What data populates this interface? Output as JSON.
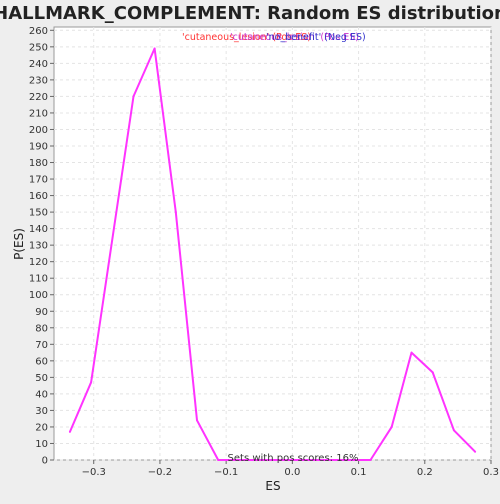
{
  "chart_data": {
    "type": "line",
    "title": "HALLMARK_COMPLEMENT: Random ES distribution",
    "xlabel": "ES",
    "ylabel": "P(ES)",
    "xlim": [
      -0.36,
      0.3
    ],
    "ylim": [
      0,
      262
    ],
    "x_ticks": [
      -0.3,
      -0.2,
      -0.1,
      0.0,
      0.1,
      0.2,
      0.3
    ],
    "x_tick_labels": [
      "−0.3",
      "−0.2",
      "−0.1",
      "0.0",
      "0.1",
      "0.2",
      "0.3"
    ],
    "y_ticks": [
      0,
      10,
      20,
      30,
      40,
      50,
      60,
      70,
      80,
      90,
      100,
      110,
      120,
      130,
      140,
      150,
      160,
      170,
      180,
      190,
      200,
      210,
      220,
      230,
      240,
      250,
      260
    ],
    "grid": true,
    "legend": {
      "position": "top-center",
      "entries": [
        {
          "label": "'cutaneous_lesion' (Pos ES)",
          "color": "#ff3333"
        },
        {
          "label": "'cutaneous_lesion' (Pos ES)",
          "color": "#cc33cc"
        },
        {
          "label": "'no_benefit' (Neg ES)",
          "color": "#3333cc"
        }
      ]
    },
    "series": [
      {
        "color": "#ff33ff",
        "x": [
          -0.336,
          -0.304,
          -0.24,
          -0.208,
          -0.176,
          -0.144,
          -0.112,
          0.118,
          0.15,
          0.18,
          0.212,
          0.244,
          0.276
        ],
        "y": [
          17,
          47,
          220,
          249,
          150,
          24,
          0,
          0,
          20,
          65,
          53,
          18,
          5
        ]
      }
    ],
    "annotation": "Sets with pos scores: 16%"
  }
}
